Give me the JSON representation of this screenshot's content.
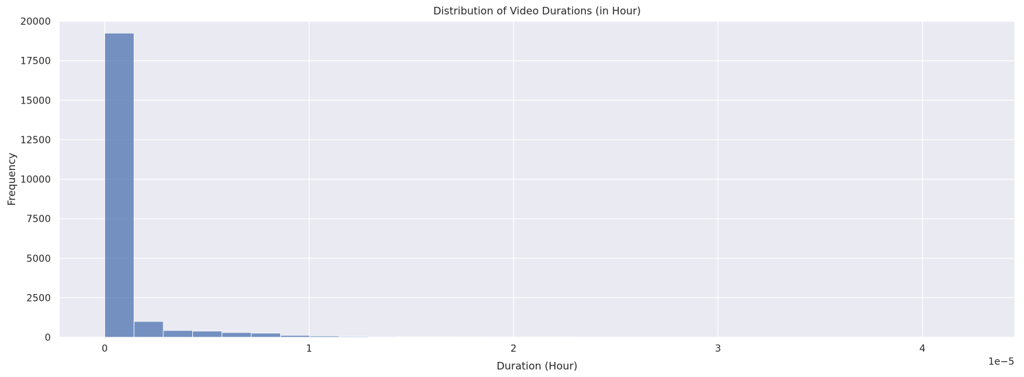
{
  "chart_data": {
    "type": "bar",
    "title": "Distribution of Video Durations (in Hour)",
    "xlabel": "Duration (Hour)",
    "ylabel": "Frequency",
    "x_offset_label": "1e−5",
    "xlim": [
      -0.22,
      4.45
    ],
    "ylim": [
      0,
      20000
    ],
    "x_ticks": [
      0,
      1,
      2,
      3,
      4
    ],
    "x_tick_labels": [
      "0",
      "1",
      "2",
      "3",
      "4"
    ],
    "y_ticks": [
      0,
      2500,
      5000,
      7500,
      10000,
      12500,
      15000,
      17500,
      20000
    ],
    "y_tick_labels": [
      "0",
      "2500",
      "5000",
      "7500",
      "10000",
      "12500",
      "15000",
      "17500",
      "20000"
    ],
    "bin_edges": [
      0,
      0.1433,
      0.2867,
      0.43,
      0.5733,
      0.7167,
      0.86,
      1.0033,
      1.1467,
      1.29,
      1.4333,
      1.5767,
      1.72,
      1.8633,
      2.0067,
      2.15,
      2.2933,
      2.4367,
      2.58,
      2.7233,
      2.8667,
      3.01,
      3.1533,
      3.2967,
      3.44,
      3.5833,
      3.7267,
      3.87,
      4.0133,
      4.1567,
      4.3
    ],
    "values": [
      19250,
      1000,
      430,
      390,
      300,
      260,
      120,
      80,
      50,
      40,
      30,
      25,
      20,
      10,
      8,
      6,
      5,
      4,
      3,
      3,
      2,
      2,
      1,
      1,
      1,
      1,
      1,
      1,
      1,
      1
    ],
    "grid": true,
    "legend": "none",
    "colors": {
      "background": "#eaeaf2",
      "grid": "#ffffff",
      "bar": "#4c72b0",
      "text": "#262626"
    }
  }
}
